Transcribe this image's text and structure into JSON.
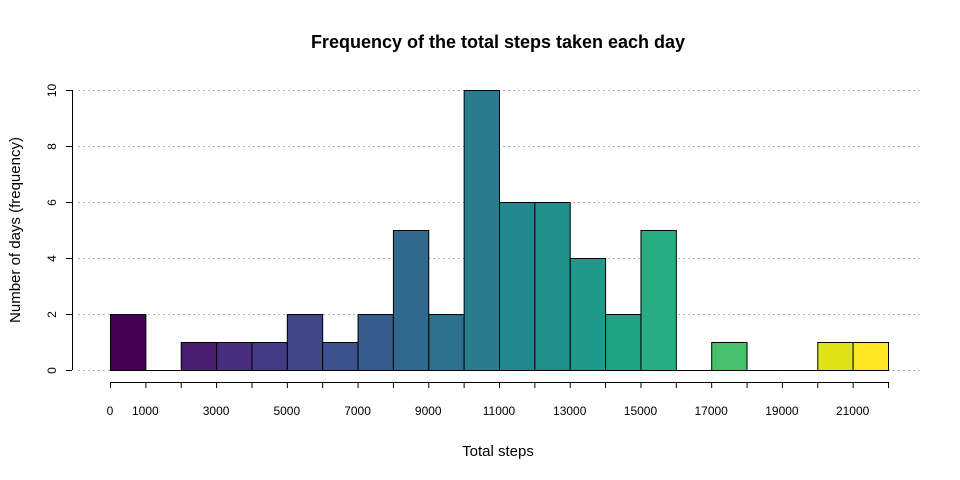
{
  "chart_data": {
    "type": "bar",
    "title": "Frequency of the total steps taken each day",
    "xlabel": "Total steps",
    "ylabel": "Number of days (frequency)",
    "bin_width": 1000,
    "xlim": [
      0,
      22000
    ],
    "ylim": [
      0,
      10
    ],
    "bins": [
      {
        "start": 0,
        "end": 1000,
        "count": 2,
        "color": "#440154"
      },
      {
        "start": 1000,
        "end": 2000,
        "count": 0,
        "color": "#471063"
      },
      {
        "start": 2000,
        "end": 3000,
        "count": 1,
        "color": "#481F70"
      },
      {
        "start": 3000,
        "end": 4000,
        "count": 1,
        "color": "#472D7B"
      },
      {
        "start": 4000,
        "end": 5000,
        "count": 1,
        "color": "#443A83"
      },
      {
        "start": 5000,
        "end": 6000,
        "count": 2,
        "color": "#404688"
      },
      {
        "start": 6000,
        "end": 7000,
        "count": 1,
        "color": "#3B528B"
      },
      {
        "start": 7000,
        "end": 8000,
        "count": 2,
        "color": "#365C8D"
      },
      {
        "start": 8000,
        "end": 9000,
        "count": 5,
        "color": "#31688E"
      },
      {
        "start": 9000,
        "end": 10000,
        "count": 2,
        "color": "#2C728E"
      },
      {
        "start": 10000,
        "end": 11000,
        "count": 10,
        "color": "#287C8E"
      },
      {
        "start": 11000,
        "end": 12000,
        "count": 6,
        "color": "#24868E"
      },
      {
        "start": 12000,
        "end": 13000,
        "count": 6,
        "color": "#21908C"
      },
      {
        "start": 13000,
        "end": 14000,
        "count": 4,
        "color": "#1F9A8A"
      },
      {
        "start": 14000,
        "end": 15000,
        "count": 2,
        "color": "#20A486"
      },
      {
        "start": 15000,
        "end": 16000,
        "count": 5,
        "color": "#27AD81"
      },
      {
        "start": 16000,
        "end": 17000,
        "count": 0,
        "color": "#35B779"
      },
      {
        "start": 17000,
        "end": 18000,
        "count": 1,
        "color": "#47C16E"
      },
      {
        "start": 18000,
        "end": 19000,
        "count": 0,
        "color": "#5DC863"
      },
      {
        "start": 19000,
        "end": 20000,
        "count": 0,
        "color": "#75D054"
      },
      {
        "start": 20000,
        "end": 21000,
        "count": 1,
        "color": "#DDE318"
      },
      {
        "start": 21000,
        "end": 22000,
        "count": 1,
        "color": "#FDE725"
      }
    ],
    "x_ticks": [
      0,
      1000,
      2000,
      3000,
      4000,
      5000,
      6000,
      7000,
      8000,
      9000,
      10000,
      11000,
      12000,
      13000,
      14000,
      15000,
      16000,
      17000,
      18000,
      19000,
      20000,
      21000,
      22000
    ],
    "x_tick_labels": [
      {
        "value": 0,
        "label": "0"
      },
      {
        "value": 1000,
        "label": "1000"
      },
      {
        "value": 3000,
        "label": "3000"
      },
      {
        "value": 5000,
        "label": "5000"
      },
      {
        "value": 7000,
        "label": "7000"
      },
      {
        "value": 9000,
        "label": "9000"
      },
      {
        "value": 11000,
        "label": "11000"
      },
      {
        "value": 13000,
        "label": "13000"
      },
      {
        "value": 15000,
        "label": "15000"
      },
      {
        "value": 17000,
        "label": "17000"
      },
      {
        "value": 19000,
        "label": "19000"
      },
      {
        "value": 21000,
        "label": "21000"
      }
    ],
    "y_ticks": [
      {
        "value": 0,
        "label": "0"
      },
      {
        "value": 2,
        "label": "2"
      },
      {
        "value": 4,
        "label": "4"
      },
      {
        "value": 6,
        "label": "6"
      },
      {
        "value": 8,
        "label": "8"
      },
      {
        "value": 10,
        "label": "10"
      }
    ],
    "grid": "horizontal-dotted",
    "legend": "none"
  }
}
